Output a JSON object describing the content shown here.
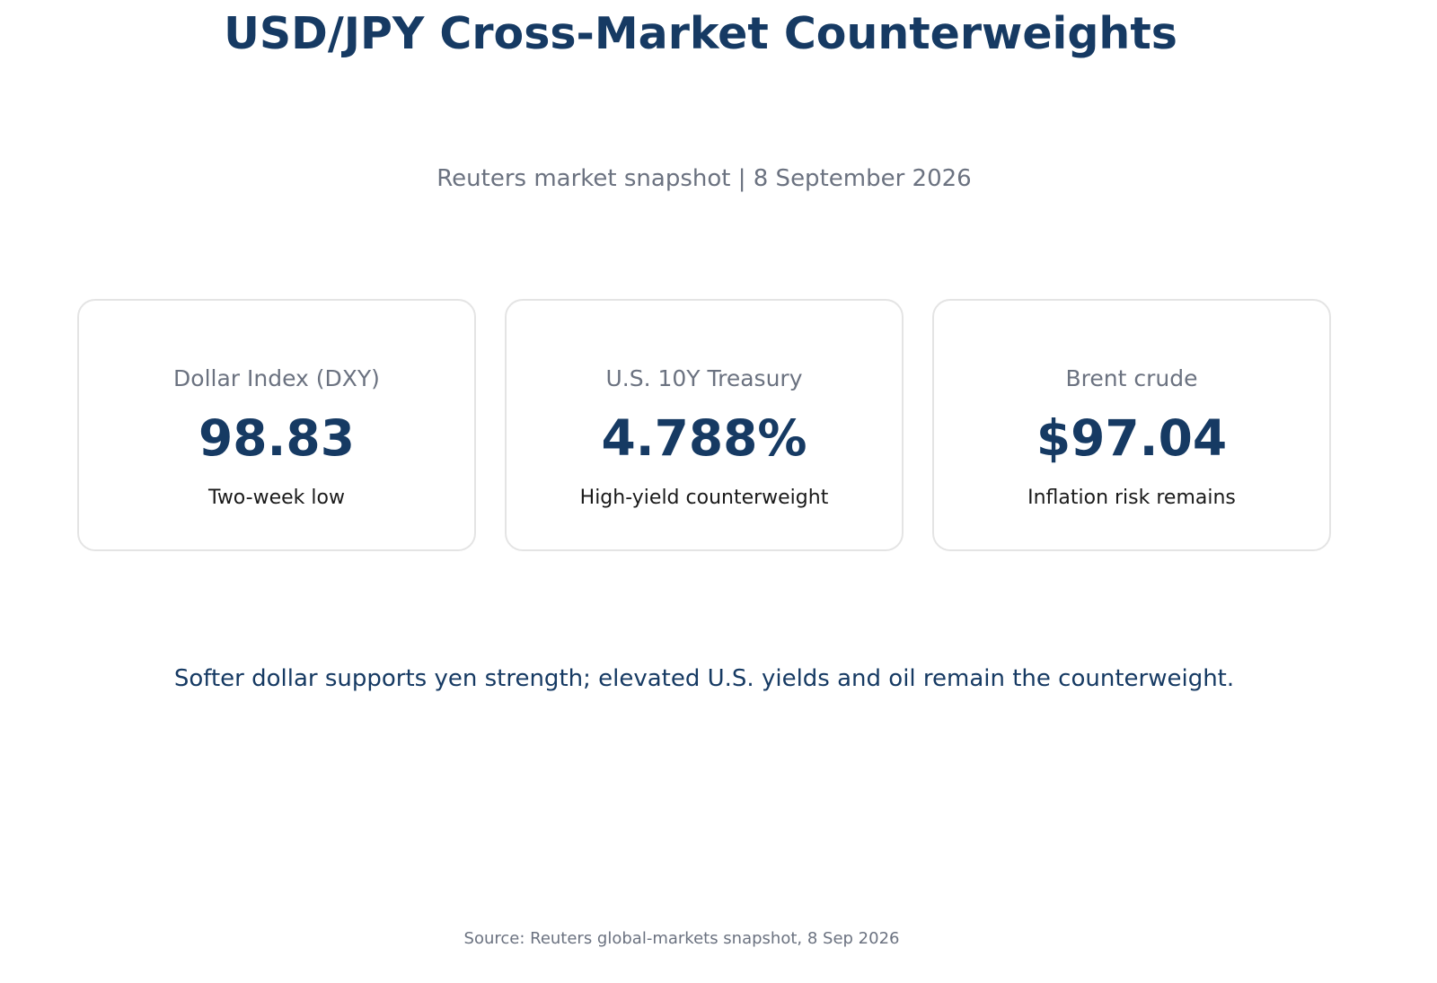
{
  "header": {
    "title": "USD/JPY Cross-Market Counterweights",
    "subtitle": "Reuters market snapshot | 8 September 2026"
  },
  "cards": [
    {
      "label": "Dollar Index (DXY)",
      "value": "98.83",
      "note": "Two-week low"
    },
    {
      "label": "U.S. 10Y Treasury",
      "value": "4.788%",
      "note": "High-yield counterweight"
    },
    {
      "label": "Brent crude",
      "value": "$97.04",
      "note": "Inflation risk remains"
    }
  ],
  "summary": "Softer dollar supports yen strength; elevated U.S. yields and oil remain the counterweight.",
  "footer": {
    "source": "Source: Reuters global-markets snapshot, 8 Sep 2026"
  },
  "colors": {
    "accent": "#163a63",
    "muted": "#6b7280",
    "card_border": "#e4e4e4"
  }
}
